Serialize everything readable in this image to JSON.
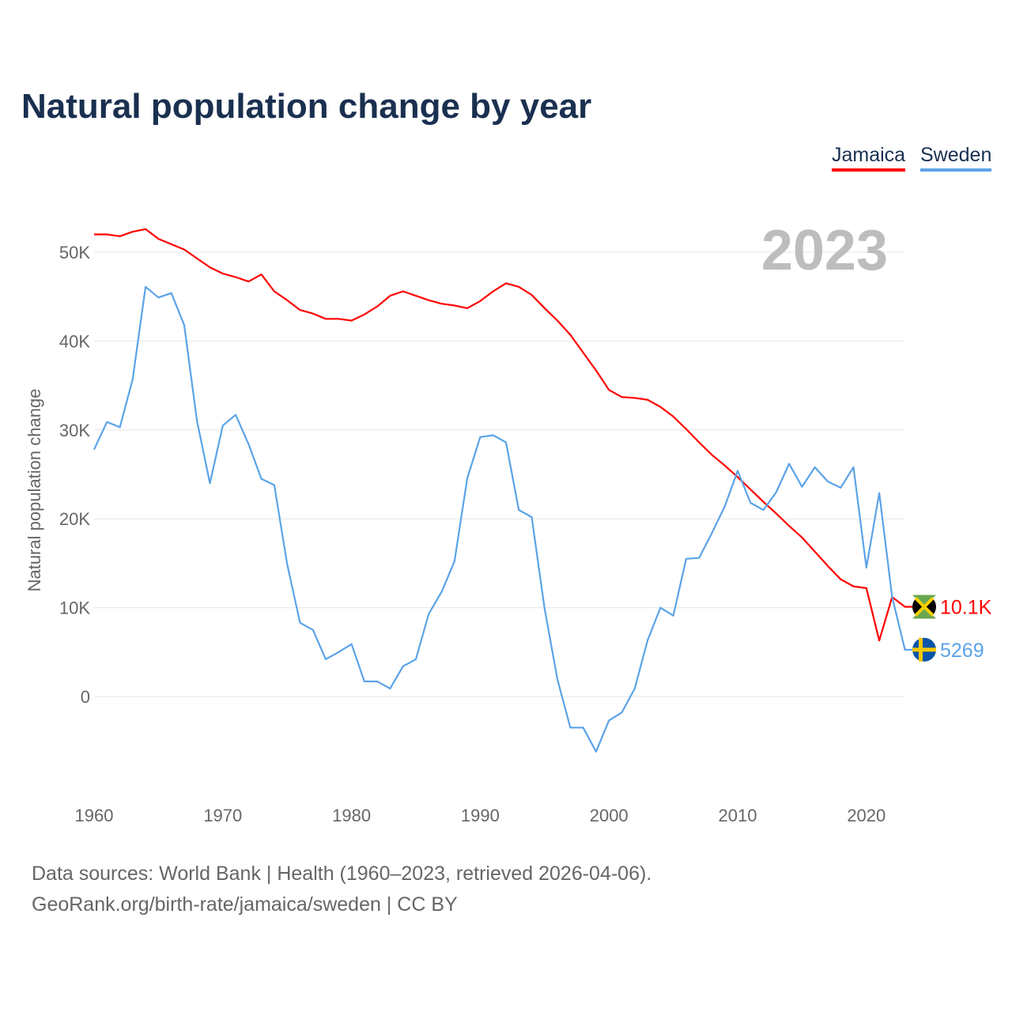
{
  "title": "Natural population change by year",
  "legend": [
    {
      "label": "Jamaica",
      "color": "#ff0000"
    },
    {
      "label": "Sweden",
      "color": "#5ba3e8"
    }
  ],
  "footer": {
    "line1": "Data sources: World Bank | Health (1960–2023, retrieved 2026-04-06).",
    "line2": "GeoRank.org/birth-rate/jamaica/sweden | CC BY"
  },
  "chart_data": {
    "type": "line",
    "title": "Natural population change by year",
    "xlabel": "",
    "ylabel": "Natural population change",
    "year_watermark": "2023",
    "xlim": [
      1960,
      2023
    ],
    "ylim": [
      -10000,
      55000
    ],
    "xticks": [
      1960,
      1970,
      1980,
      1990,
      2000,
      2010,
      2020
    ],
    "xtick_labels": [
      "1960",
      "1970",
      "1980",
      "1990",
      "2000",
      "2010",
      "2020"
    ],
    "yticks": [
      0,
      10000,
      20000,
      30000,
      40000,
      50000
    ],
    "ytick_labels": [
      "0",
      "10K",
      "20K",
      "30K",
      "40K",
      "50K"
    ],
    "grid": true,
    "legend_position": "top-right",
    "x_start": 1960,
    "series": [
      {
        "name": "Jamaica",
        "color": "#ff0000",
        "end_label": "10.1K",
        "flag": "jamaica-flag",
        "values": [
          52000,
          52000,
          51800,
          52300,
          52600,
          51500,
          50900,
          50300,
          49300,
          48300,
          47600,
          47200,
          46700,
          47500,
          45600,
          44600,
          43500,
          43100,
          42500,
          42500,
          42300,
          43000,
          43900,
          45100,
          45600,
          45100,
          44600,
          44200,
          44000,
          43700,
          44500,
          45600,
          46500,
          46100,
          45200,
          43700,
          42300,
          40700,
          38700,
          36700,
          34500,
          33700,
          33600,
          33400,
          32600,
          31500,
          30100,
          28600,
          27200,
          26000,
          24700,
          23300,
          21900,
          20600,
          19200,
          17900,
          16300,
          14700,
          13200,
          12400,
          12200,
          6300,
          11200,
          10100
        ]
      },
      {
        "name": "Sweden",
        "color": "#5ba3e8",
        "end_label": "5269",
        "flag": "sweden-flag",
        "values": [
          27800,
          30900,
          30300,
          35700,
          46100,
          44900,
          45400,
          41800,
          31000,
          24000,
          30500,
          31700,
          28400,
          24500,
          23800,
          14900,
          8300,
          7500,
          4200,
          5000,
          5900,
          1700,
          1700,
          900,
          3400,
          4200,
          9300,
          11800,
          15200,
          24600,
          29200,
          29400,
          28600,
          21000,
          20200,
          9900,
          1900,
          -3500,
          -3500,
          -6200,
          -2700,
          -1800,
          900,
          6300,
          10000,
          9100,
          15500,
          15600,
          18400,
          21400,
          25400,
          21800,
          21000,
          23000,
          26200,
          23600,
          25800,
          24200,
          23500,
          25800,
          14500,
          22900,
          11200,
          5269
        ]
      }
    ]
  }
}
